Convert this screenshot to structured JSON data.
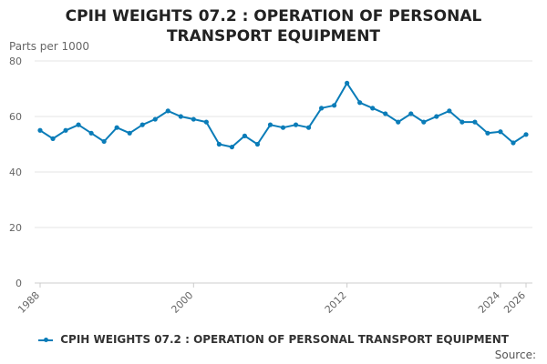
{
  "title_lines": [
    "CPIH WEIGHTS 07.2 : OPERATION OF PERSONAL",
    "TRANSPORT EQUIPMENT"
  ],
  "source_label": "Source:",
  "colors": {
    "series": "#0a7cb8",
    "grid": "#e6e6e6",
    "axis": "#cccccc"
  },
  "chart_data": {
    "type": "line",
    "title": "CPIH WEIGHTS 07.2 : OPERATION OF PERSONAL TRANSPORT EQUIPMENT",
    "xlabel": "",
    "ylabel": "Parts per 1000",
    "ylim": [
      0,
      80
    ],
    "yticks": [
      0,
      20,
      40,
      60,
      80
    ],
    "xticks": [
      1988,
      2000,
      2012,
      2024,
      2026
    ],
    "xlim": [
      1988,
      2026
    ],
    "legend_position": "bottom",
    "series": [
      {
        "name": "CPIH WEIGHTS 07.2 : OPERATION OF PERSONAL TRANSPORT EQUIPMENT",
        "x": [
          1988,
          1989,
          1990,
          1991,
          1992,
          1993,
          1994,
          1995,
          1996,
          1997,
          1998,
          1999,
          2000,
          2001,
          2002,
          2003,
          2004,
          2005,
          2006,
          2007,
          2008,
          2009,
          2010,
          2011,
          2012,
          2013,
          2014,
          2015,
          2016,
          2017,
          2018,
          2019,
          2020,
          2021,
          2022,
          2023,
          2024,
          2025,
          2026
        ],
        "values": [
          55,
          52,
          55,
          57,
          54,
          51,
          56,
          54,
          57,
          59,
          62,
          60,
          59,
          58,
          50,
          49,
          53,
          50,
          57,
          56,
          57,
          56,
          63,
          64,
          72,
          65,
          63,
          61,
          58,
          61,
          58,
          60,
          62,
          58,
          58,
          54,
          54.5,
          50.5,
          53.5
        ]
      }
    ]
  }
}
